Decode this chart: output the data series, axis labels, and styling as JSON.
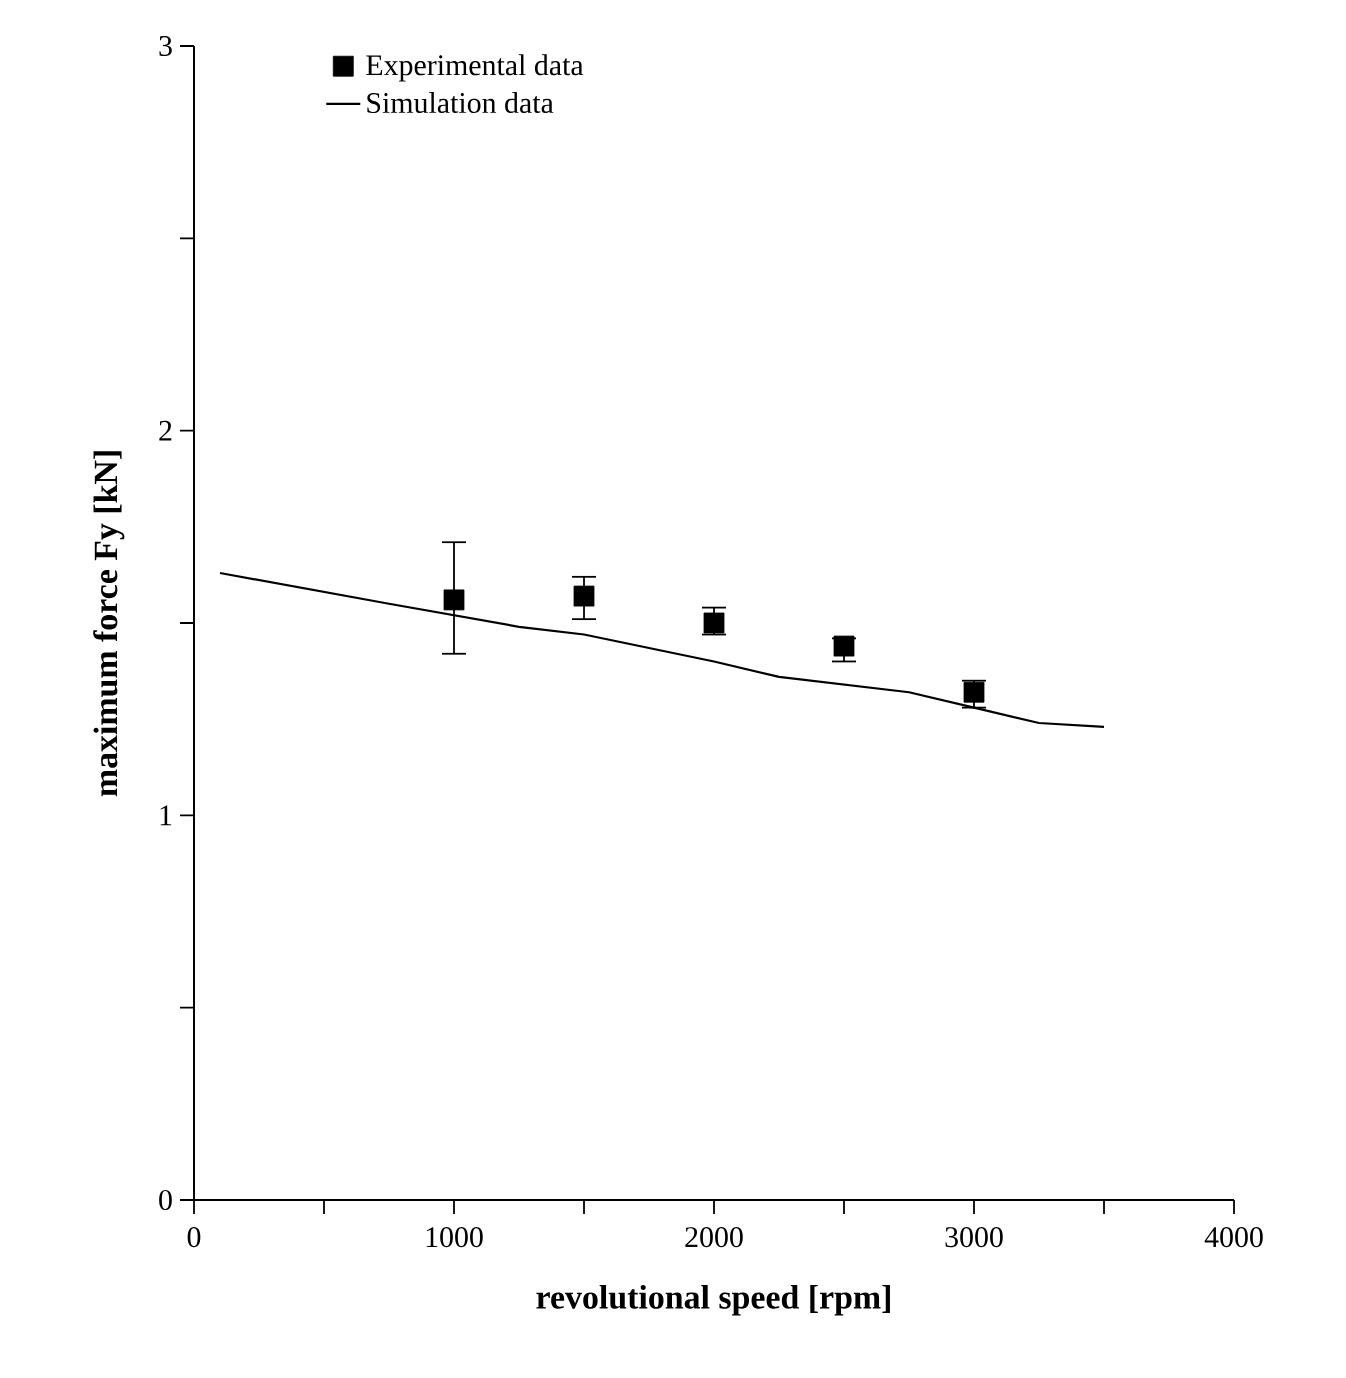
{
  "chart_data": {
    "type": "scatter",
    "xlabel": "revolutional speed [rpm]",
    "ylabel": "maximum force Fy [kN]",
    "xlim": [
      0,
      4000
    ],
    "ylim": [
      0,
      3
    ],
    "xticks": [
      0,
      {
        "value": 500,
        "label": null
      },
      1000,
      {
        "value": 1500,
        "label": null
      },
      2000,
      {
        "value": 2500,
        "label": null
      },
      3000,
      {
        "value": 3500,
        "label": null
      },
      4000
    ],
    "yticks": [
      0,
      {
        "value": 0.5,
        "label": null
      },
      1,
      {
        "value": 1.5,
        "label": null
      },
      2,
      {
        "value": 2.5,
        "label": null
      },
      3
    ],
    "grid": false,
    "legend": "top left",
    "series": [
      {
        "name": "Experimental data",
        "marker": "square",
        "color": "#000000",
        "x": [
          1000,
          1500,
          2000,
          2500,
          3000
        ],
        "values": [
          1.56,
          1.57,
          1.5,
          1.44,
          1.32
        ],
        "errors": [
          [
            1.42,
            1.71
          ],
          [
            1.51,
            1.62
          ],
          [
            1.47,
            1.54
          ],
          [
            1.4,
            1.46
          ],
          [
            1.28,
            1.35
          ]
        ]
      },
      {
        "name": "Simulation data",
        "type": "line",
        "marker": "none",
        "line_style": "solid",
        "color": "#000000",
        "x": [
          100,
          750,
          1250,
          1500,
          2000,
          2250,
          2500,
          2750,
          3000,
          3250,
          3500
        ],
        "values": [
          1.63,
          1.55,
          1.49,
          1.47,
          1.4,
          1.36,
          1.34,
          1.32,
          1.28,
          1.24,
          1.23
        ]
      }
    ]
  }
}
